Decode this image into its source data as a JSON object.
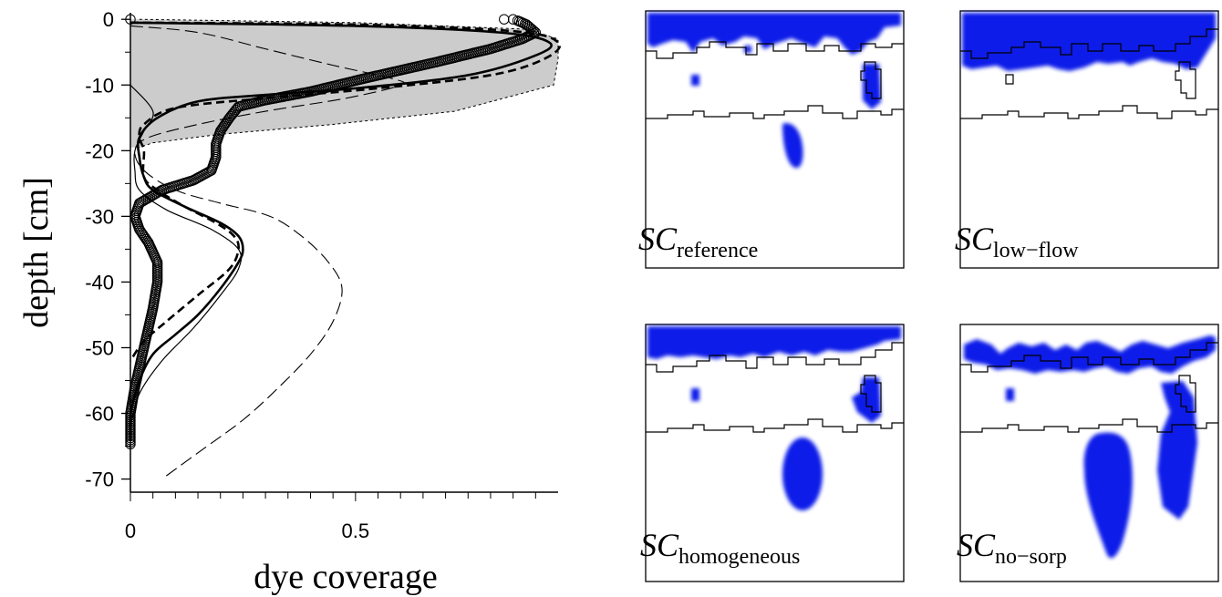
{
  "chart_data": [
    {
      "type": "line",
      "xlabel": "dye coverage",
      "ylabel": "depth [cm]",
      "xlim": [
        0,
        0.95
      ],
      "ylim": [
        -72,
        1
      ],
      "x_ticks": [
        0,
        0.5
      ],
      "x_tick_labels": [
        "0",
        "0.5"
      ],
      "y_ticks": [
        0,
        -10,
        -20,
        -30,
        -40,
        -50,
        -60,
        -70
      ],
      "y_tick_labels": [
        "0",
        "-10",
        "-20",
        "-30",
        "-40",
        "-50",
        "-60",
        "-70"
      ],
      "grid": false,
      "band": {
        "style": "gray-fill",
        "color": "#cccccc",
        "right_edge": [
          [
            0.02,
            0
          ],
          [
            0.5,
            -0.5
          ],
          [
            0.88,
            -1.5
          ],
          [
            0.95,
            -3
          ],
          [
            0.95,
            -6
          ],
          [
            0.94,
            -10
          ],
          [
            0.72,
            -14
          ],
          [
            0.45,
            -16
          ],
          [
            0.2,
            -17.5
          ],
          [
            0.05,
            -18.8
          ],
          [
            0.02,
            -19.5
          ]
        ]
      },
      "series": [
        {
          "style": "circles",
          "color": "#000000",
          "points": [
            [
              0,
              0
            ],
            [
              0.86,
              -0.2
            ],
            [
              0.88,
              -0.8
            ],
            [
              0.9,
              -2
            ],
            [
              0.87,
              -3
            ],
            [
              0.8,
              -4.5
            ],
            [
              0.68,
              -6.5
            ],
            [
              0.52,
              -9
            ],
            [
              0.4,
              -11
            ],
            [
              0.3,
              -12.3
            ],
            [
              0.24,
              -13.3
            ],
            [
              0.22,
              -15
            ],
            [
              0.2,
              -17
            ],
            [
              0.19,
              -19
            ],
            [
              0.19,
              -21
            ],
            [
              0.18,
              -23
            ],
            [
              0.14,
              -24.5
            ],
            [
              0.07,
              -26
            ],
            [
              0.02,
              -28
            ],
            [
              0.01,
              -30
            ],
            [
              0.02,
              -32
            ],
            [
              0.04,
              -34
            ],
            [
              0.06,
              -37
            ],
            [
              0.06,
              -40
            ],
            [
              0.05,
              -44
            ],
            [
              0.03,
              -50
            ],
            [
              0.01,
              -56
            ],
            [
              0,
              -60
            ],
            [
              0,
              -65
            ]
          ]
        },
        {
          "style": "solid-thick",
          "color": "#000000",
          "points": [
            [
              0,
              -0.5
            ],
            [
              0.5,
              -1
            ],
            [
              0.82,
              -2
            ],
            [
              0.93,
              -3.5
            ],
            [
              0.9,
              -5.5
            ],
            [
              0.75,
              -8.5
            ],
            [
              0.5,
              -10.5
            ],
            [
              0.3,
              -11.5
            ],
            [
              0.15,
              -12.5
            ],
            [
              0.06,
              -15
            ],
            [
              0.02,
              -18
            ],
            [
              0.02,
              -21
            ],
            [
              0.03,
              -24
            ],
            [
              0.05,
              -26
            ],
            [
              0.12,
              -28.5
            ],
            [
              0.2,
              -31
            ],
            [
              0.24,
              -33
            ],
            [
              0.25,
              -35
            ],
            [
              0.24,
              -37
            ],
            [
              0.2,
              -41
            ],
            [
              0.15,
              -45
            ],
            [
              0.1,
              -48
            ],
            [
              0.05,
              -51
            ],
            [
              0.02,
              -55
            ],
            [
              0,
              -60
            ]
          ]
        },
        {
          "style": "dashed-thick",
          "color": "#000000",
          "points": [
            [
              0,
              -0.5
            ],
            [
              0.5,
              -0.8
            ],
            [
              0.85,
              -1.8
            ],
            [
              0.95,
              -3.5
            ],
            [
              0.92,
              -6
            ],
            [
              0.8,
              -8.5
            ],
            [
              0.55,
              -10.5
            ],
            [
              0.3,
              -12
            ],
            [
              0.1,
              -13.5
            ],
            [
              0.03,
              -16
            ],
            [
              0.02,
              -18
            ],
            [
              0.03,
              -20
            ],
            [
              0.03,
              -24
            ],
            [
              0.06,
              -26
            ],
            [
              0.12,
              -28.5
            ],
            [
              0.19,
              -31
            ],
            [
              0.23,
              -33
            ],
            [
              0.24,
              -35
            ],
            [
              0.22,
              -38
            ],
            [
              0.15,
              -42
            ],
            [
              0.08,
              -46
            ],
            [
              0.03,
              -49
            ],
            [
              0,
              -52
            ]
          ]
        },
        {
          "style": "dashed-thin",
          "color": "#000000",
          "points": [
            [
              0,
              -1
            ],
            [
              0.15,
              -2
            ],
            [
              0.3,
              -4.5
            ],
            [
              0.45,
              -7
            ],
            [
              0.58,
              -9
            ],
            [
              0.6,
              -10
            ],
            [
              0.48,
              -12
            ],
            [
              0.3,
              -14
            ],
            [
              0.15,
              -16
            ],
            [
              0.04,
              -18
            ],
            [
              0.01,
              -20
            ],
            [
              0.03,
              -23
            ],
            [
              0.1,
              -26
            ],
            [
              0.2,
              -28
            ],
            [
              0.31,
              -30
            ],
            [
              0.38,
              -33
            ],
            [
              0.44,
              -37
            ],
            [
              0.47,
              -41
            ],
            [
              0.45,
              -46
            ],
            [
              0.4,
              -51
            ],
            [
              0.33,
              -56
            ],
            [
              0.25,
              -61
            ],
            [
              0.15,
              -66
            ],
            [
              0.07,
              -70
            ]
          ]
        },
        {
          "style": "solid-thin",
          "color": "#000000",
          "points": [
            [
              0,
              -10
            ],
            [
              0.05,
              -14
            ],
            [
              0.03,
              -17
            ],
            [
              0.01,
              -20
            ],
            [
              0.01,
              -23
            ],
            [
              0.02,
              -26
            ],
            [
              0.08,
              -29
            ],
            [
              0.18,
              -32
            ],
            [
              0.24,
              -35
            ],
            [
              0.24,
              -38
            ],
            [
              0.2,
              -42
            ],
            [
              0.14,
              -47
            ],
            [
              0.07,
              -52
            ],
            [
              0.02,
              -57
            ],
            [
              0,
              -62
            ]
          ]
        }
      ]
    },
    {
      "type": "image-panels",
      "panels": [
        {
          "label_main": "SC",
          "label_sub": "reference"
        },
        {
          "label_main": "SC",
          "label_sub": "low−flow"
        },
        {
          "label_main": "SC",
          "label_sub": "homogeneous"
        },
        {
          "label_main": "SC",
          "label_sub": "no−sorp"
        }
      ],
      "dye_color": "#0a1fe8"
    }
  ]
}
